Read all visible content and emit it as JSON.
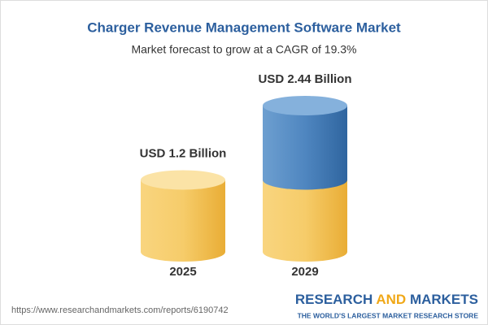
{
  "chart_data": {
    "type": "bar",
    "title": "Charger Revenue Management Software Market",
    "subtitle": "Market forecast to grow at a CAGR of 19.3%",
    "categories": [
      "2025",
      "2029"
    ],
    "values": [
      1.2,
      2.44
    ],
    "value_labels": [
      "USD 1.2 Billion",
      "USD 2.44 Billion"
    ],
    "color": "#f4c457",
    "highlight_color": "#4a82bd"
  },
  "footer": {
    "url": "https://www.researchandmarkets.com/reports/6190742",
    "brand_words": [
      "RESEARCH",
      "AND",
      "MARKETS"
    ],
    "tagline": "THE WORLD'S LARGEST MARKET RESEARCH STORE"
  }
}
